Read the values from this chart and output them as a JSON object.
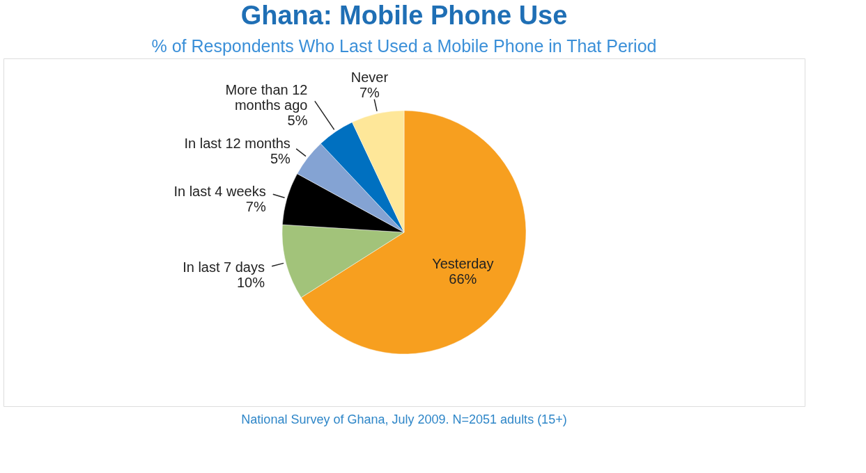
{
  "chart_data": {
    "type": "pie",
    "title": "Ghana: Mobile Phone Use",
    "subtitle": "% of Respondents Who Last Used a Mobile Phone in That Period",
    "categories": [
      "Yesterday",
      "In last 7 days",
      "In last 4 weeks",
      "In last 12 months",
      "More than 12 months ago",
      "Never"
    ],
    "values": [
      66,
      10,
      7,
      5,
      5,
      7
    ],
    "value_labels": [
      "66%",
      "10%",
      "7%",
      "5%",
      "5%",
      "7%"
    ],
    "colors": [
      "#f79f1f",
      "#a2c37a",
      "#000000",
      "#84a3d3",
      "#0070c0",
      "#fee799"
    ],
    "legend": false,
    "annotations": [
      "National Survey of Ghana, July 2009. N=2051 adults (15+)"
    ]
  }
}
